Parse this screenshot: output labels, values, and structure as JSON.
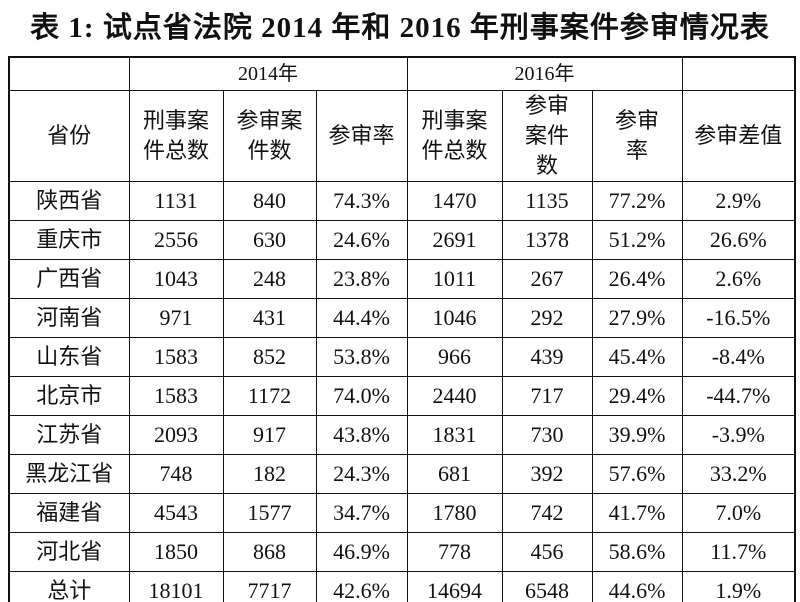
{
  "title": "表 1: 试点省法院 2014 年和 2016 年刑事案件参审情况表",
  "table": {
    "header_groups": [
      "2014年",
      "2016年"
    ],
    "columns": [
      "省份",
      "刑事案件总数",
      "参审案件数",
      "参审率",
      "刑事案件总数",
      "参审案件数",
      "参审率",
      "参审差值"
    ],
    "rows": [
      [
        "陕西省",
        "1131",
        "840",
        "74.3%",
        "1470",
        "1135",
        "77.2%",
        "2.9%"
      ],
      [
        "重庆市",
        "2556",
        "630",
        "24.6%",
        "2691",
        "1378",
        "51.2%",
        "26.6%"
      ],
      [
        "广西省",
        "1043",
        "248",
        "23.8%",
        "1011",
        "267",
        "26.4%",
        "2.6%"
      ],
      [
        "河南省",
        "971",
        "431",
        "44.4%",
        "1046",
        "292",
        "27.9%",
        "-16.5%"
      ],
      [
        "山东省",
        "1583",
        "852",
        "53.8%",
        "966",
        "439",
        "45.4%",
        "-8.4%"
      ],
      [
        "北京市",
        "1583",
        "1172",
        "74.0%",
        "2440",
        "717",
        "29.4%",
        "-44.7%"
      ],
      [
        "江苏省",
        "2093",
        "917",
        "43.8%",
        "1831",
        "730",
        "39.9%",
        "-3.9%"
      ],
      [
        "黑龙江省",
        "748",
        "182",
        "24.3%",
        "681",
        "392",
        "57.6%",
        "33.2%"
      ],
      [
        "福建省",
        "4543",
        "1577",
        "34.7%",
        "1780",
        "742",
        "41.7%",
        "7.0%"
      ],
      [
        "河北省",
        "1850",
        "868",
        "46.9%",
        "778",
        "456",
        "58.6%",
        "11.7%"
      ],
      [
        "总计",
        "18101",
        "7717",
        "42.6%",
        "14694",
        "6548",
        "44.6%",
        "1.9%"
      ]
    ]
  }
}
